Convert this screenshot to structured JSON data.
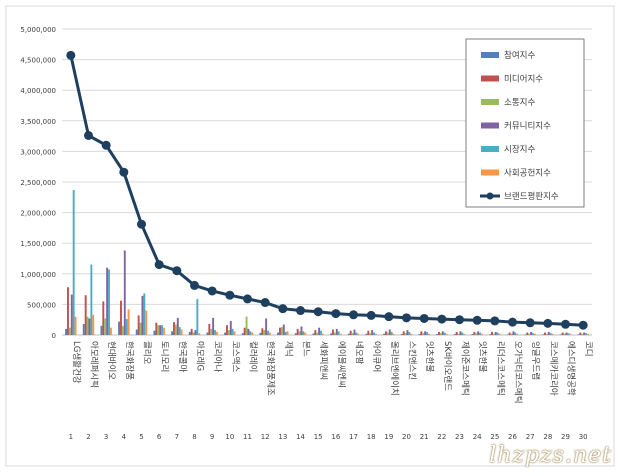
{
  "chart_data": {
    "type": "bar",
    "ylim": [
      0,
      5000000
    ],
    "yticks": [
      "0",
      "500,000",
      "1,000,000",
      "1,500,000",
      "2,000,000",
      "2,500,000",
      "3,000,000",
      "3,500,000",
      "4,000,000",
      "4,500,000",
      "5,000,000"
    ],
    "ytick_values": [
      0,
      500000,
      1000000,
      1500000,
      2000000,
      2500000,
      3000000,
      3500000,
      4000000,
      4500000,
      5000000
    ],
    "categories": [
      "LG생활건강",
      "아모레퍼시픽",
      "현대바이오",
      "한국화장품",
      "클리오",
      "토니모리",
      "한국콜마",
      "아모레G",
      "코리아나",
      "코스맥스",
      "컬러레이",
      "한국화장품제조",
      "제닉",
      "본느",
      "세화피앤씨",
      "에이블씨엔씨",
      "네오팜",
      "아이큐어",
      "올리브엔에이치",
      "스킨앤스킨",
      "잇츠한불",
      "SK바이오랜드",
      "제이준코스메틱",
      "잇츠한불",
      "리더스코스메틱",
      "오가닉티코스메틱",
      "잉글우드랩",
      "코스메카코리아",
      "에스디생명공학",
      "코디"
    ],
    "category_numbers": [
      "1",
      "2",
      "3",
      "4",
      "5",
      "6",
      "7",
      "8",
      "9",
      "10",
      "11",
      "12",
      "13",
      "14",
      "15",
      "16",
      "17",
      "18",
      "19",
      "20",
      "21",
      "22",
      "23",
      "24",
      "25",
      "26",
      "27",
      "28",
      "29",
      "30"
    ],
    "series": [
      {
        "name": "참여지수",
        "color": "#4f81bd",
        "values": [
          100000,
          180000,
          150000,
          220000,
          90000,
          70000,
          60000,
          50000,
          40000,
          40000,
          30000,
          35000,
          40000,
          30000,
          25000,
          25000,
          20000,
          20000,
          20000,
          15000,
          15000,
          15000,
          15000,
          15000,
          12000,
          10000,
          10000,
          10000,
          10000,
          10000
        ]
      },
      {
        "name": "미디어지수",
        "color": "#c0504d",
        "values": [
          780000,
          650000,
          550000,
          560000,
          320000,
          200000,
          210000,
          100000,
          180000,
          160000,
          120000,
          110000,
          120000,
          100000,
          80000,
          90000,
          70000,
          70000,
          60000,
          60000,
          60000,
          50000,
          50000,
          50000,
          50000,
          40000,
          40000,
          40000,
          40000,
          40000
        ]
      },
      {
        "name": "소통지수",
        "color": "#9bbb59",
        "values": [
          120000,
          300000,
          270000,
          150000,
          200000,
          160000,
          170000,
          40000,
          100000,
          80000,
          300000,
          80000,
          130000,
          60000,
          40000,
          40000,
          30000,
          30000,
          40000,
          30000,
          30000,
          30000,
          20000,
          30000,
          20000,
          20000,
          20000,
          20000,
          20000,
          20000
        ]
      },
      {
        "name": "커뮤니티지수",
        "color": "#8064a2",
        "values": [
          660000,
          270000,
          1100000,
          1380000,
          640000,
          160000,
          280000,
          80000,
          280000,
          230000,
          100000,
          270000,
          170000,
          140000,
          120000,
          100000,
          90000,
          80000,
          90000,
          80000,
          60000,
          60000,
          60000,
          60000,
          50000,
          60000,
          50000,
          50000,
          40000,
          40000
        ]
      },
      {
        "name": "시장지수",
        "color": "#4bacc6",
        "values": [
          2370000,
          1150000,
          1070000,
          260000,
          680000,
          160000,
          130000,
          590000,
          80000,
          100000,
          60000,
          70000,
          50000,
          60000,
          70000,
          60000,
          40000,
          40000,
          50000,
          50000,
          50000,
          40000,
          40000,
          40000,
          40000,
          40000,
          30000,
          30000,
          30000,
          30000
        ]
      },
      {
        "name": "사회공헌지수",
        "color": "#f79646",
        "values": [
          300000,
          330000,
          120000,
          420000,
          400000,
          120000,
          90000,
          30000,
          50000,
          60000,
          40000,
          40000,
          60000,
          40000,
          20000,
          20000,
          20000,
          20000,
          20000,
          20000,
          20000,
          20000,
          20000,
          20000,
          20000,
          20000,
          20000,
          20000,
          20000,
          20000
        ]
      }
    ],
    "line": {
      "name": "브랜드평판지수",
      "color": "#1f3f5f",
      "values": [
        4570000,
        3260000,
        3100000,
        2660000,
        1810000,
        1150000,
        1050000,
        810000,
        720000,
        650000,
        590000,
        530000,
        430000,
        400000,
        380000,
        350000,
        330000,
        320000,
        300000,
        280000,
        270000,
        260000,
        250000,
        240000,
        230000,
        210000,
        200000,
        190000,
        175000,
        160000
      ]
    },
    "legend": "top-right",
    "grid": true
  },
  "watermark": "lhzpzs.net"
}
